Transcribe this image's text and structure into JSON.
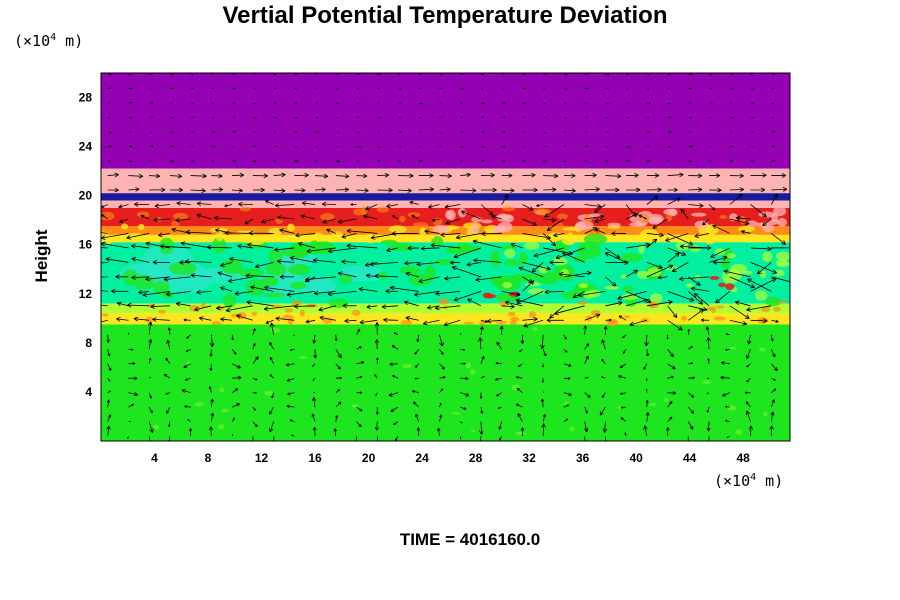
{
  "chart_data": {
    "type": "heatmap",
    "title": "Vertial Potential Temperature Deviation",
    "ylabel": "Height",
    "x_unit": {
      "prefix": "(×10",
      "exponent": "4",
      "suffix": " m)"
    },
    "y_unit": {
      "prefix": "(×10",
      "exponent": "4",
      "suffix": " m)"
    },
    "x_ticks": [
      4,
      8,
      12,
      16,
      20,
      24,
      28,
      32,
      36,
      40,
      44,
      48
    ],
    "y_ticks": [
      4,
      8,
      12,
      16,
      20,
      24,
      28
    ],
    "xlim": [
      0,
      51.5
    ],
    "ylim": [
      0,
      30
    ],
    "time_label": "TIME = 4016160.0",
    "colors": {
      "purple": "#9400b4",
      "pink": "#ffb4b4",
      "navy": "#1a1aa0",
      "red": "#e61e1e",
      "orange": "#ff8c14",
      "yellow": "#ffe61e",
      "yellow_green": "#b4ff32",
      "green": "#1ee61e",
      "cyan_green": "#00f0a0",
      "cyan": "#28e6c8"
    },
    "layers": [
      {
        "y0": 22.2,
        "y1": 30,
        "color": "purple"
      },
      {
        "y0": 20.2,
        "y1": 22.2,
        "color": "pink"
      },
      {
        "y0": 19.6,
        "y1": 20.2,
        "color": "navy"
      },
      {
        "y0": 19.0,
        "y1": 19.6,
        "color": "pink"
      },
      {
        "y0": 17.5,
        "y1": 19.0,
        "color": "red"
      },
      {
        "y0": 16.8,
        "y1": 17.5,
        "color": "orange"
      },
      {
        "y0": 16.2,
        "y1": 16.8,
        "color": "yellow"
      },
      {
        "y0": 11.2,
        "y1": 16.2,
        "color": "cyan_green"
      },
      {
        "y0": 10.4,
        "y1": 11.2,
        "color": "yellow_green"
      },
      {
        "y0": 9.5,
        "y1": 10.4,
        "color": "yellow"
      },
      {
        "y0": 0,
        "y1": 9.5,
        "color": "green"
      }
    ]
  }
}
